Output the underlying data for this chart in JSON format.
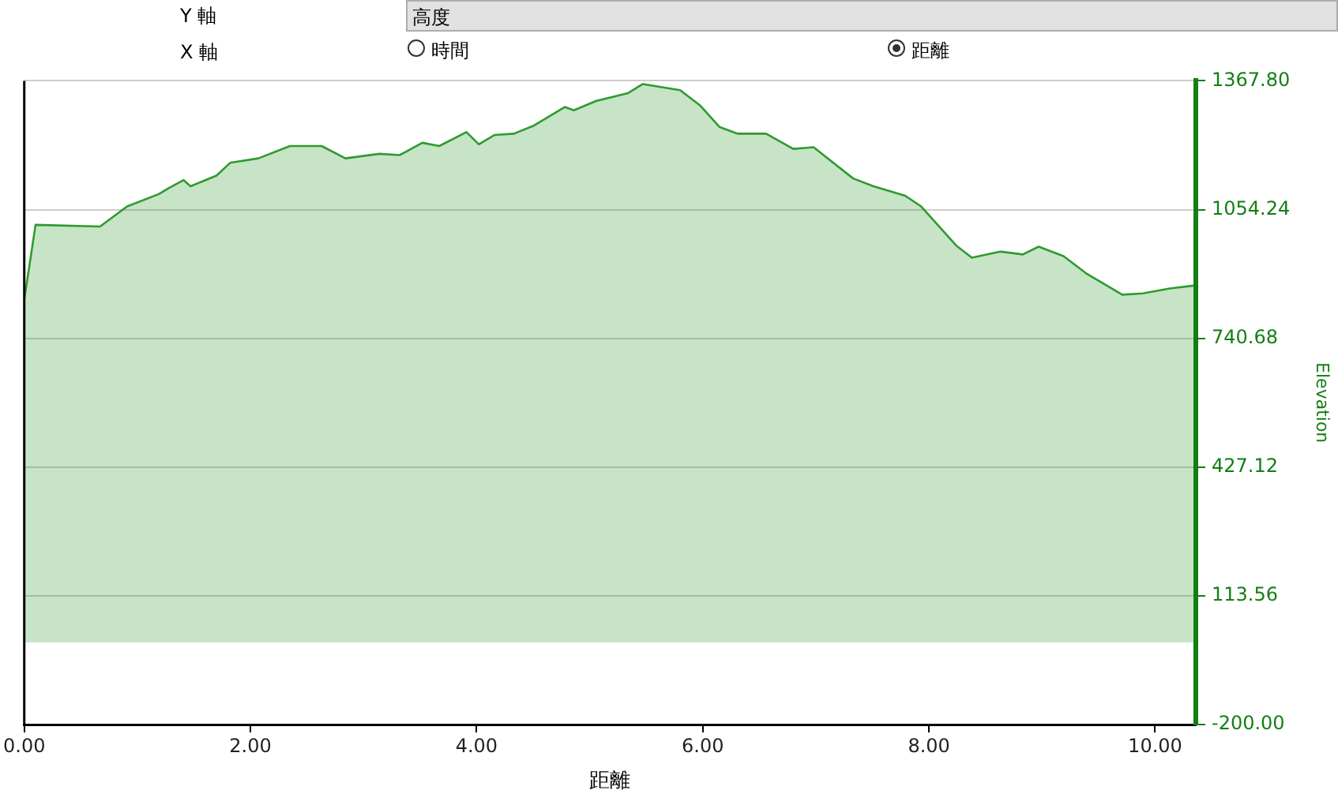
{
  "chart_data": {
    "type": "area",
    "xlabel": "距離",
    "ylabel": "Elevation",
    "annotations": [
      "Y 軸",
      "高度",
      "X 軸",
      "時間",
      "距離"
    ],
    "x": [
      0,
      0.1,
      0.67,
      0.91,
      1.19,
      1.28,
      1.41,
      1.47,
      1.7,
      1.82,
      2.07,
      2.35,
      2.63,
      2.84,
      3.14,
      3.32,
      3.52,
      3.67,
      3.91,
      4.02,
      4.16,
      4.33,
      4.5,
      4.78,
      4.86,
      5.06,
      5.34,
      5.47,
      5.8,
      5.98,
      6.15,
      6.31,
      6.56,
      6.8,
      6.98,
      7.33,
      7.51,
      7.79,
      7.93,
      8.24,
      8.38,
      8.63,
      8.83,
      8.97,
      9.19,
      9.39,
      9.71,
      9.89,
      10.13,
      10.34
    ],
    "series": [
      {
        "color": "#2f9a2f",
        "values": [
          835,
          1017,
          1013,
          1062,
          1092,
          1107,
          1126,
          1111,
          1137,
          1168,
          1179,
          1209,
          1209,
          1179,
          1190,
          1187,
          1217,
          1209,
          1243,
          1213,
          1236,
          1239,
          1258,
          1304,
          1296,
          1319,
          1338,
          1360,
          1345,
          1307,
          1255,
          1239,
          1239,
          1202,
          1206,
          1130,
          1111,
          1088,
          1062,
          967,
          937,
          952,
          945,
          964,
          941,
          899,
          847,
          850,
          862,
          869
        ]
      }
    ],
    "xlim": [
      0,
      10.36
    ],
    "xticks": [
      {
        "value": 0,
        "label": "0.00"
      },
      {
        "value": 2,
        "label": "2.00"
      },
      {
        "value": 4,
        "label": "4.00"
      },
      {
        "value": 6,
        "label": "6.00"
      },
      {
        "value": 8,
        "label": "8.00"
      },
      {
        "value": 10,
        "label": "10.00"
      }
    ],
    "ylim": [
      -200,
      1367.8
    ],
    "yticks": [
      {
        "value": -200,
        "label": "-200.00"
      },
      113.56,
      427.12,
      740.68,
      1054.24,
      {
        "value": 1367.8,
        "label": "1367.80"
      }
    ],
    "grid": "y",
    "legend": false,
    "marker": "none",
    "line_style": "solid"
  }
}
